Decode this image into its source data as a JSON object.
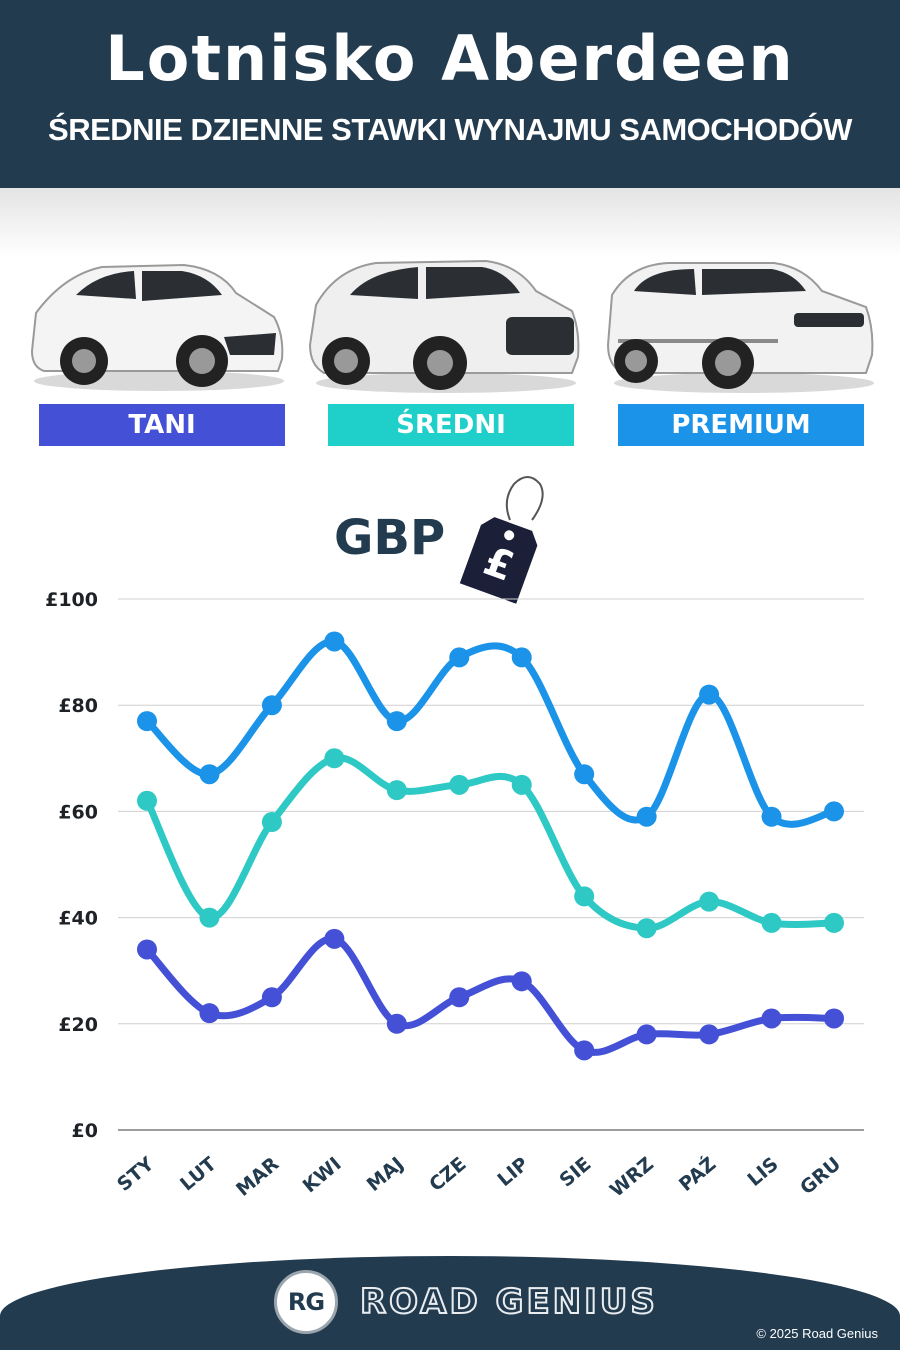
{
  "header": {
    "title": "Lotnisko Aberdeen",
    "subtitle": "ŚREDNIE DZIENNE STAWKI WYNAJMU SAMOCHODÓW"
  },
  "categories_legend": [
    {
      "label": "TANI",
      "color": "#4450d6",
      "car_icon": "hatchback-car-icon"
    },
    {
      "label": "ŚREDNI",
      "color": "#1fcfc9",
      "car_icon": "suv-car-icon"
    },
    {
      "label": "PREMIUM",
      "color": "#1a93e8",
      "car_icon": "premium-suv-car-icon"
    }
  ],
  "currency": {
    "label": "GBP",
    "symbol": "£",
    "icon": "price-tag-icon"
  },
  "chart_data": {
    "type": "line",
    "categories": [
      "STY",
      "LUT",
      "MAR",
      "KWI",
      "MAJ",
      "CZE",
      "LIP",
      "SIE",
      "WRZ",
      "PAŹ",
      "LIS",
      "GRU"
    ],
    "series": [
      {
        "name": "PREMIUM",
        "color": "#1a93e8",
        "values": [
          77,
          67,
          80,
          92,
          77,
          89,
          89,
          67,
          59,
          82,
          59,
          60
        ]
      },
      {
        "name": "ŚREDNI",
        "color": "#2ec9c4",
        "values": [
          62,
          40,
          58,
          70,
          64,
          65,
          65,
          44,
          38,
          43,
          39,
          39
        ]
      },
      {
        "name": "TANI",
        "color": "#4450d6",
        "values": [
          34,
          22,
          25,
          36,
          20,
          25,
          28,
          15,
          18,
          18,
          21,
          21
        ]
      }
    ],
    "ylim": [
      0,
      100
    ],
    "yticks": [
      0,
      20,
      40,
      60,
      80,
      100
    ],
    "ytick_labels": [
      "£0",
      "£20",
      "£40",
      "£60",
      "£80",
      "£100"
    ],
    "grid": true
  },
  "footer": {
    "logo": "RG",
    "brand": "ROAD GENIUS",
    "copyright": "© 2025 Road Genius"
  }
}
